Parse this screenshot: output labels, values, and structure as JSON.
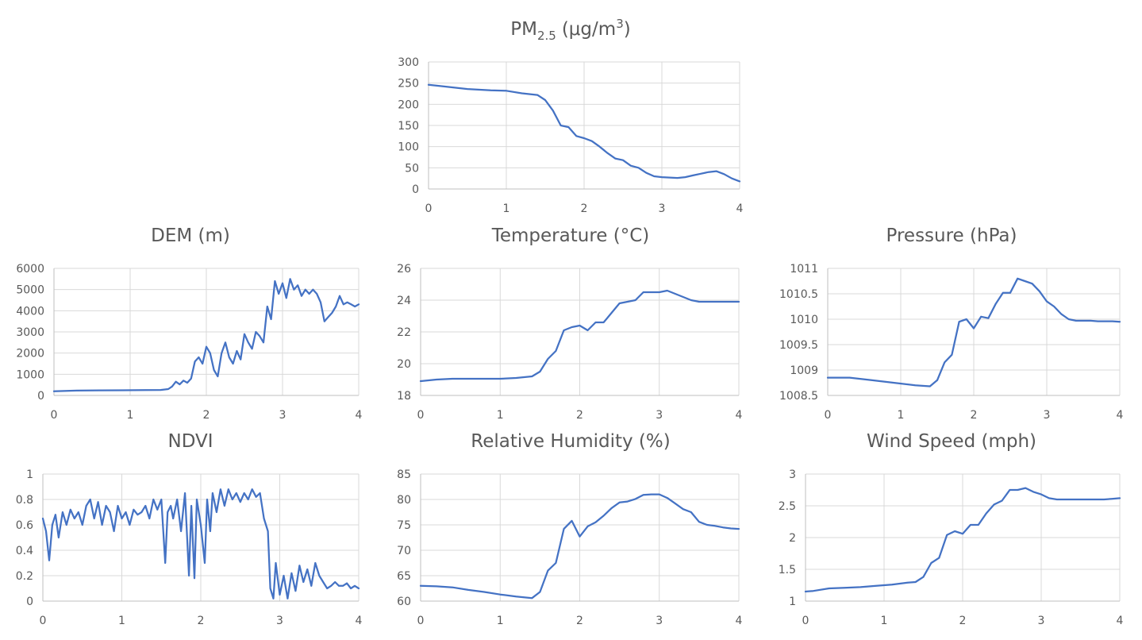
{
  "chart_data": [
    {
      "type": "line",
      "title_main": "PM",
      "title_sub": "2.5",
      "title_unit": "(μg/m",
      "title_sup": "3",
      "title_close": ")",
      "xlim": [
        0,
        4
      ],
      "ylim": [
        0,
        300
      ],
      "xticks": [
        0,
        1,
        2,
        3,
        4
      ],
      "yticks": [
        0,
        50,
        100,
        150,
        200,
        250,
        300
      ],
      "ytick_labels": [
        "0",
        "50",
        "100",
        "150",
        "200",
        "250",
        "300"
      ],
      "grid": true,
      "series": [
        {
          "x": [
            0,
            0.2,
            0.5,
            0.8,
            1.0,
            1.2,
            1.4,
            1.5,
            1.6,
            1.7,
            1.8,
            1.9,
            2.0,
            2.1,
            2.2,
            2.3,
            2.4,
            2.5,
            2.6,
            2.7,
            2.8,
            2.9,
            3.0,
            3.1,
            3.2,
            3.3,
            3.4,
            3.5,
            3.6,
            3.7,
            3.8,
            3.9,
            4.0
          ],
          "y": [
            246,
            242,
            236,
            233,
            232,
            226,
            222,
            210,
            185,
            150,
            146,
            125,
            120,
            113,
            100,
            85,
            72,
            68,
            55,
            50,
            38,
            30,
            28,
            27,
            26,
            28,
            32,
            36,
            40,
            42,
            35,
            25,
            18
          ]
        }
      ]
    },
    {
      "type": "line",
      "title": "DEM (m)",
      "xlim": [
        0,
        4
      ],
      "ylim": [
        0,
        6000
      ],
      "xticks": [
        0,
        1,
        2,
        3,
        4
      ],
      "yticks": [
        0,
        1000,
        2000,
        3000,
        4000,
        5000,
        6000
      ],
      "ytick_labels": [
        "0",
        "1000",
        "2000",
        "3000",
        "4000",
        "5000",
        "6000"
      ],
      "grid": true,
      "series": [
        {
          "x": [
            0,
            0.3,
            0.6,
            0.9,
            1.2,
            1.4,
            1.5,
            1.55,
            1.6,
            1.65,
            1.7,
            1.75,
            1.8,
            1.85,
            1.9,
            1.95,
            2.0,
            2.05,
            2.1,
            2.15,
            2.2,
            2.25,
            2.3,
            2.35,
            2.4,
            2.45,
            2.5,
            2.55,
            2.6,
            2.65,
            2.7,
            2.75,
            2.8,
            2.85,
            2.9,
            2.95,
            3.0,
            3.05,
            3.1,
            3.15,
            3.2,
            3.25,
            3.3,
            3.35,
            3.4,
            3.45,
            3.5,
            3.55,
            3.6,
            3.65,
            3.7,
            3.75,
            3.8,
            3.85,
            3.9,
            3.95,
            4.0
          ],
          "y": [
            200,
            230,
            240,
            245,
            250,
            260,
            300,
            420,
            650,
            520,
            700,
            600,
            800,
            1600,
            1800,
            1500,
            2300,
            2000,
            1200,
            900,
            2000,
            2500,
            1800,
            1500,
            2100,
            1700,
            2900,
            2500,
            2200,
            3000,
            2800,
            2500,
            4200,
            3600,
            5400,
            4800,
            5300,
            4600,
            5500,
            5000,
            5200,
            4700,
            5000,
            4800,
            5000,
            4800,
            4400,
            3500,
            3700,
            3900,
            4200,
            4700,
            4300,
            4400,
            4300,
            4200,
            4300
          ]
        }
      ]
    },
    {
      "type": "line",
      "title": "Temperature (°C)",
      "xlim": [
        0,
        4
      ],
      "ylim": [
        18,
        26
      ],
      "xticks": [
        0,
        1,
        2,
        3,
        4
      ],
      "yticks": [
        18,
        20,
        22,
        24,
        26
      ],
      "ytick_labels": [
        "18",
        "20",
        "22",
        "24",
        "26"
      ],
      "grid": true,
      "series": [
        {
          "x": [
            0,
            0.2,
            0.4,
            0.6,
            0.8,
            1.0,
            1.2,
            1.4,
            1.5,
            1.6,
            1.7,
            1.8,
            1.9,
            2.0,
            2.1,
            2.2,
            2.3,
            2.4,
            2.5,
            2.6,
            2.7,
            2.8,
            2.9,
            3.0,
            3.1,
            3.2,
            3.3,
            3.4,
            3.5,
            3.6,
            3.7,
            3.8,
            3.9,
            4.0
          ],
          "y": [
            18.9,
            19.0,
            19.05,
            19.05,
            19.05,
            19.05,
            19.1,
            19.2,
            19.5,
            20.3,
            20.8,
            22.1,
            22.3,
            22.4,
            22.1,
            22.6,
            22.6,
            23.2,
            23.8,
            23.9,
            24.0,
            24.5,
            24.5,
            24.5,
            24.6,
            24.4,
            24.2,
            24.0,
            23.9,
            23.9,
            23.9,
            23.9,
            23.9,
            23.9
          ]
        }
      ]
    },
    {
      "type": "line",
      "title": "Pressure (hPa)",
      "xlim": [
        0,
        4
      ],
      "ylim": [
        1008.5,
        1011
      ],
      "xticks": [
        0,
        1,
        2,
        3,
        4
      ],
      "yticks": [
        1008.5,
        1009,
        1009.5,
        1010,
        1010.5,
        1011
      ],
      "ytick_labels": [
        "1008.5",
        "1009",
        "1009.5",
        "1010",
        "1010.5",
        "1011"
      ],
      "grid": true,
      "series": [
        {
          "x": [
            0,
            0.3,
            0.6,
            0.9,
            1.2,
            1.4,
            1.5,
            1.6,
            1.7,
            1.8,
            1.9,
            2.0,
            2.1,
            2.2,
            2.3,
            2.4,
            2.5,
            2.6,
            2.7,
            2.8,
            2.9,
            3.0,
            3.1,
            3.2,
            3.3,
            3.4,
            3.5,
            3.6,
            3.7,
            3.8,
            3.9,
            4.0
          ],
          "y": [
            1008.85,
            1008.85,
            1008.8,
            1008.75,
            1008.7,
            1008.68,
            1008.8,
            1009.15,
            1009.3,
            1009.95,
            1010.0,
            1009.82,
            1010.05,
            1010.02,
            1010.3,
            1010.52,
            1010.52,
            1010.8,
            1010.75,
            1010.7,
            1010.55,
            1010.35,
            1010.25,
            1010.1,
            1010.0,
            1009.97,
            1009.97,
            1009.97,
            1009.96,
            1009.96,
            1009.96,
            1009.95
          ]
        }
      ]
    },
    {
      "type": "line",
      "title": "NDVI",
      "xlim": [
        0,
        4
      ],
      "ylim": [
        0,
        1
      ],
      "xticks": [
        0,
        1,
        2,
        3,
        4
      ],
      "yticks": [
        0,
        0.2,
        0.4,
        0.6,
        0.8,
        1
      ],
      "ytick_labels": [
        "0",
        "0.2",
        "0.4",
        "0.6",
        "0.8",
        "1"
      ],
      "grid": true,
      "series": [
        {
          "x": [
            0,
            0.04,
            0.08,
            0.12,
            0.16,
            0.2,
            0.25,
            0.3,
            0.35,
            0.4,
            0.45,
            0.5,
            0.55,
            0.6,
            0.65,
            0.7,
            0.75,
            0.8,
            0.85,
            0.9,
            0.95,
            1.0,
            1.05,
            1.1,
            1.15,
            1.2,
            1.25,
            1.3,
            1.35,
            1.4,
            1.45,
            1.5,
            1.55,
            1.58,
            1.62,
            1.65,
            1.7,
            1.75,
            1.8,
            1.85,
            1.88,
            1.92,
            1.95,
            2.0,
            2.05,
            2.08,
            2.12,
            2.15,
            2.2,
            2.25,
            2.3,
            2.35,
            2.4,
            2.45,
            2.5,
            2.55,
            2.6,
            2.65,
            2.7,
            2.75,
            2.8,
            2.85,
            2.88,
            2.92,
            2.95,
            3.0,
            3.05,
            3.1,
            3.15,
            3.2,
            3.25,
            3.3,
            3.35,
            3.4,
            3.45,
            3.5,
            3.55,
            3.6,
            3.65,
            3.7,
            3.75,
            3.8,
            3.85,
            3.9,
            3.95,
            4.0
          ],
          "y": [
            0.65,
            0.55,
            0.32,
            0.6,
            0.68,
            0.5,
            0.7,
            0.6,
            0.72,
            0.65,
            0.7,
            0.6,
            0.75,
            0.8,
            0.65,
            0.78,
            0.6,
            0.75,
            0.7,
            0.55,
            0.75,
            0.65,
            0.7,
            0.6,
            0.72,
            0.68,
            0.7,
            0.75,
            0.65,
            0.8,
            0.72,
            0.8,
            0.3,
            0.7,
            0.75,
            0.65,
            0.8,
            0.55,
            0.85,
            0.2,
            0.75,
            0.18,
            0.8,
            0.6,
            0.3,
            0.8,
            0.55,
            0.85,
            0.7,
            0.88,
            0.75,
            0.88,
            0.8,
            0.85,
            0.78,
            0.85,
            0.8,
            0.88,
            0.82,
            0.85,
            0.65,
            0.55,
            0.1,
            0.02,
            0.3,
            0.05,
            0.2,
            0.02,
            0.22,
            0.08,
            0.28,
            0.15,
            0.25,
            0.12,
            0.3,
            0.2,
            0.15,
            0.1,
            0.12,
            0.15,
            0.12,
            0.12,
            0.14,
            0.1,
            0.12,
            0.1
          ]
        }
      ]
    },
    {
      "type": "line",
      "title": "Relative Humidity (%)",
      "xlim": [
        0,
        4
      ],
      "ylim": [
        60,
        85
      ],
      "xticks": [
        0,
        1,
        2,
        3,
        4
      ],
      "yticks": [
        60,
        65,
        70,
        75,
        80,
        85
      ],
      "ytick_labels": [
        "60",
        "65",
        "70",
        "75",
        "80",
        "85"
      ],
      "grid": true,
      "series": [
        {
          "x": [
            0,
            0.2,
            0.4,
            0.6,
            0.8,
            1.0,
            1.2,
            1.4,
            1.5,
            1.6,
            1.7,
            1.8,
            1.9,
            2.0,
            2.1,
            2.2,
            2.3,
            2.4,
            2.5,
            2.6,
            2.7,
            2.8,
            2.9,
            3.0,
            3.1,
            3.2,
            3.3,
            3.4,
            3.5,
            3.6,
            3.7,
            3.8,
            3.9,
            4.0
          ],
          "y": [
            63.0,
            62.9,
            62.7,
            62.2,
            61.8,
            61.3,
            60.9,
            60.6,
            61.8,
            66.0,
            67.5,
            74.2,
            75.8,
            72.7,
            74.7,
            75.5,
            76.8,
            78.3,
            79.4,
            79.6,
            80.1,
            80.9,
            81.0,
            81.0,
            80.3,
            79.2,
            78.1,
            77.5,
            75.6,
            75.0,
            74.8,
            74.5,
            74.3,
            74.2
          ]
        }
      ]
    },
    {
      "type": "line",
      "title": "Wind Speed (mph)",
      "xlim": [
        0,
        4
      ],
      "ylim": [
        1,
        3
      ],
      "xticks": [
        0,
        1,
        2,
        3,
        4
      ],
      "yticks": [
        1,
        1.5,
        2,
        2.5,
        3
      ],
      "ytick_labels": [
        "1",
        "1.5",
        "2",
        "2.5",
        "3"
      ],
      "grid": true,
      "series": [
        {
          "x": [
            0,
            0.1,
            0.3,
            0.5,
            0.7,
            0.9,
            1.1,
            1.3,
            1.4,
            1.5,
            1.6,
            1.7,
            1.8,
            1.9,
            2.0,
            2.1,
            2.2,
            2.3,
            2.4,
            2.5,
            2.6,
            2.7,
            2.8,
            2.9,
            3.0,
            3.1,
            3.2,
            3.3,
            3.4,
            3.5,
            3.6,
            3.7,
            3.8,
            3.9,
            4.0
          ],
          "y": [
            1.15,
            1.16,
            1.2,
            1.21,
            1.22,
            1.24,
            1.26,
            1.29,
            1.3,
            1.38,
            1.6,
            1.68,
            2.04,
            2.1,
            2.06,
            2.2,
            2.2,
            2.38,
            2.52,
            2.58,
            2.75,
            2.75,
            2.78,
            2.72,
            2.68,
            2.62,
            2.6,
            2.6,
            2.6,
            2.6,
            2.6,
            2.6,
            2.6,
            2.61,
            2.62
          ]
        }
      ]
    }
  ]
}
